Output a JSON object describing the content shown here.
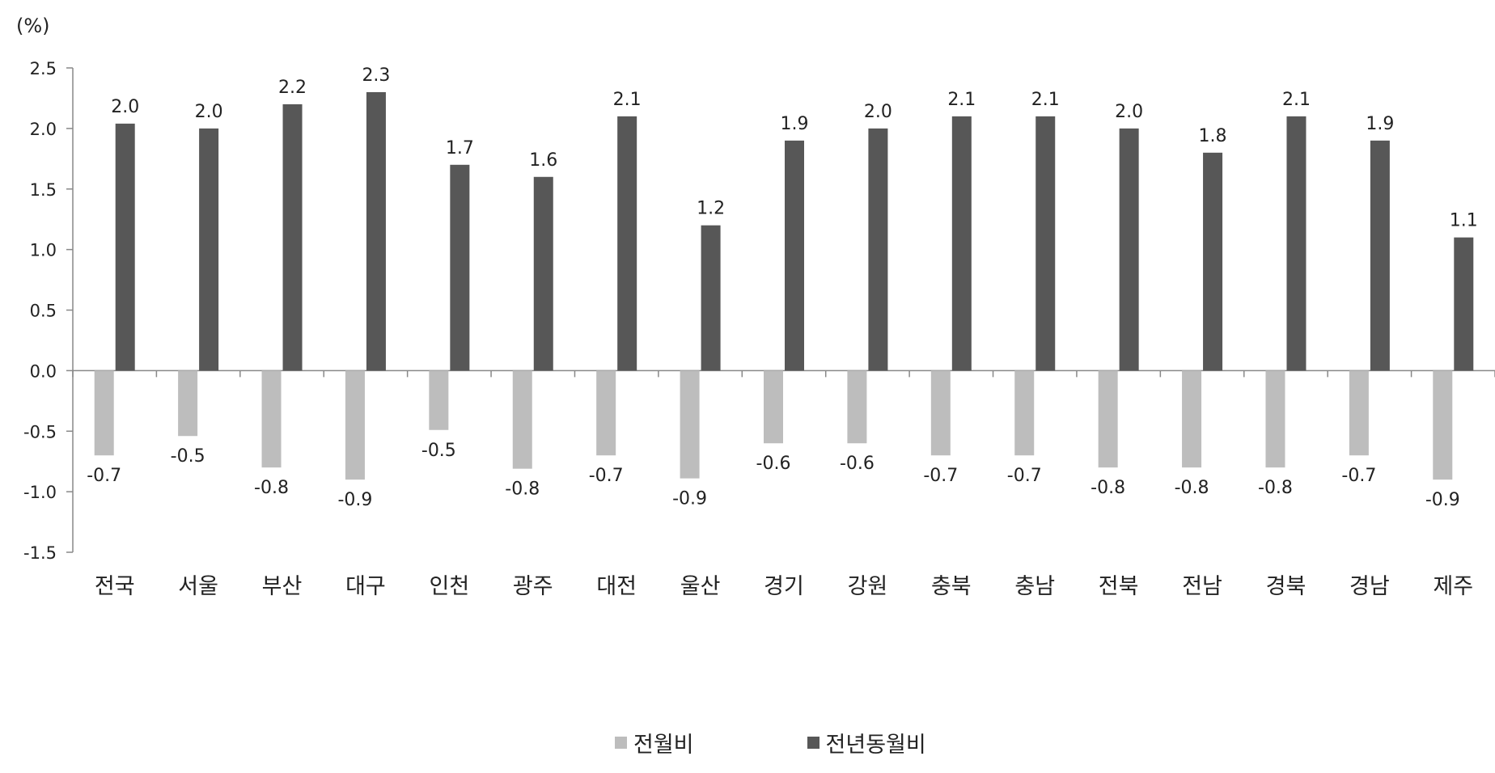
{
  "chart_data": {
    "type": "bar",
    "unit_label": "(%)",
    "ylim": [
      -1.5,
      2.5
    ],
    "ytick_labels": [
      "2.5",
      "2.0",
      "1.5",
      "1.0",
      "0.5",
      "0.0",
      "-0.5",
      "-1.0",
      "-1.5"
    ],
    "yticks": [
      2.5,
      2.0,
      1.5,
      1.0,
      0.5,
      0.0,
      -0.5,
      -1.0,
      -1.5
    ],
    "grid": false,
    "legend_position": "bottom",
    "categories": [
      "전국",
      "서울",
      "부산",
      "대구",
      "인천",
      "광주",
      "대전",
      "울산",
      "경기",
      "강원",
      "충북",
      "충남",
      "전북",
      "전남",
      "경북",
      "경남",
      "제주"
    ],
    "series": [
      {
        "name": "전월비",
        "color": "#bdbdbd",
        "values": [
          -0.7,
          -0.5,
          -0.8,
          -0.9,
          -0.5,
          -0.8,
          -0.7,
          -0.9,
          -0.6,
          -0.6,
          -0.7,
          -0.7,
          -0.8,
          -0.8,
          -0.8,
          -0.7,
          -0.9
        ],
        "bar_values": [
          -0.7,
          -0.54,
          -0.8,
          -0.9,
          -0.49,
          -0.81,
          -0.7,
          -0.89,
          -0.6,
          -0.6,
          -0.7,
          -0.7,
          -0.8,
          -0.8,
          -0.8,
          -0.7,
          -0.9
        ],
        "labels": [
          "-0.7",
          "-0.5",
          "-0.8",
          "-0.9",
          "-0.5",
          "-0.8",
          "-0.7",
          "-0.9",
          "-0.6",
          "-0.6",
          "-0.7",
          "-0.7",
          "-0.8",
          "-0.8",
          "-0.8",
          "-0.7",
          "-0.9"
        ]
      },
      {
        "name": "전년동월비",
        "color": "#575757",
        "values": [
          2.0,
          2.0,
          2.2,
          2.3,
          1.7,
          1.6,
          2.1,
          1.2,
          1.9,
          2.0,
          2.1,
          2.1,
          2.0,
          1.8,
          2.1,
          1.9,
          1.1
        ],
        "bar_values": [
          2.04,
          2.0,
          2.2,
          2.3,
          1.7,
          1.6,
          2.1,
          1.2,
          1.9,
          2.0,
          2.1,
          2.1,
          2.0,
          1.8,
          2.1,
          1.9,
          1.1
        ],
        "labels": [
          "2.0",
          "2.0",
          "2.2",
          "2.3",
          "1.7",
          "1.6",
          "2.1",
          "1.2",
          "1.9",
          "2.0",
          "2.1",
          "2.1",
          "2.0",
          "1.8",
          "2.1",
          "1.9",
          "1.1"
        ]
      }
    ]
  }
}
